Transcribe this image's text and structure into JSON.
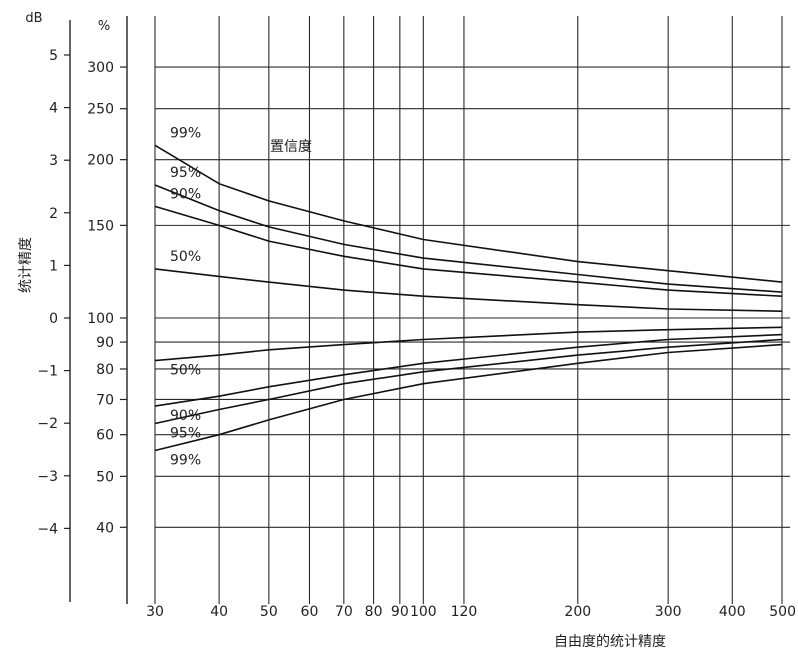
{
  "chart_data": {
    "type": "line",
    "title": "",
    "xlabel": "自由度的统计精度",
    "ylabel": "统计精度",
    "x_scale": "log",
    "xlim": [
      30,
      500
    ],
    "x_ticks": [
      30,
      40,
      50,
      60,
      70,
      80,
      90,
      100,
      120,
      200,
      300,
      400,
      500
    ],
    "y_scale": "log",
    "y_unit_percent": "%",
    "y_unit_db": "dB",
    "ylim_percent": [
      32,
      340
    ],
    "y_ticks_percent": [
      40,
      50,
      60,
      70,
      80,
      90,
      100,
      150,
      200,
      250,
      300
    ],
    "y_ticks_db": [
      -4,
      -3,
      -2,
      -1,
      0,
      1,
      2,
      3,
      4,
      5
    ],
    "annotation": "置信度",
    "grid": true,
    "series": [
      {
        "name": "99%",
        "band": "upper",
        "x": [
          30,
          40,
          50,
          70,
          100,
          200,
          300,
          500
        ],
        "values": [
          213,
          180,
          167,
          153,
          141,
          128,
          123,
          117
        ]
      },
      {
        "name": "95%",
        "band": "upper",
        "x": [
          30,
          40,
          50,
          70,
          100,
          200,
          300,
          500
        ],
        "values": [
          179,
          160,
          149,
          138,
          130,
          121,
          116,
          112
        ]
      },
      {
        "name": "90%",
        "band": "upper",
        "x": [
          30,
          40,
          50,
          70,
          100,
          200,
          300,
          500
        ],
        "values": [
          163,
          150,
          140,
          131,
          124,
          117,
          113,
          110
        ]
      },
      {
        "name": "50%",
        "band": "upper",
        "x": [
          30,
          40,
          50,
          70,
          100,
          200,
          300,
          500
        ],
        "values": [
          124,
          120,
          117,
          113,
          110,
          106,
          104,
          103
        ]
      },
      {
        "name": "50%",
        "band": "lower",
        "x": [
          30,
          40,
          50,
          70,
          100,
          200,
          300,
          500
        ],
        "values": [
          83,
          85,
          87,
          89,
          91,
          94,
          95,
          96
        ]
      },
      {
        "name": "90%",
        "band": "lower",
        "x": [
          30,
          40,
          50,
          70,
          100,
          200,
          300,
          500
        ],
        "values": [
          68,
          71,
          74,
          78,
          82,
          88,
          91,
          93
        ]
      },
      {
        "name": "95%",
        "band": "lower",
        "x": [
          30,
          40,
          50,
          70,
          100,
          200,
          300,
          500
        ],
        "values": [
          63,
          67,
          70,
          75,
          79,
          85,
          88,
          91
        ]
      },
      {
        "name": "99%",
        "band": "lower",
        "x": [
          30,
          40,
          50,
          70,
          100,
          200,
          300,
          500
        ],
        "values": [
          56,
          60,
          64,
          70,
          75,
          82,
          86,
          89
        ]
      }
    ]
  }
}
